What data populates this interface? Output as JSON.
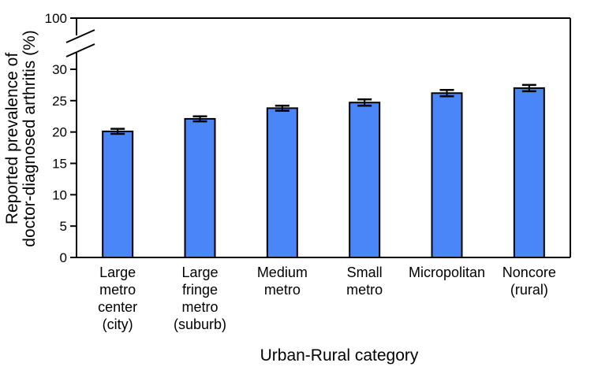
{
  "chart_data": {
    "type": "bar",
    "title": "",
    "xlabel": "Urban-Rural category",
    "ylabel_lines": [
      "Reported prevalence of",
      "doctor-diagnosed arthritis (%)"
    ],
    "categories": [
      {
        "lines": [
          "Large",
          "metro",
          "center",
          "(city)"
        ]
      },
      {
        "lines": [
          "Large",
          "fringe",
          "metro",
          "(suburb)"
        ]
      },
      {
        "lines": [
          "Medium",
          "metro"
        ]
      },
      {
        "lines": [
          "Small",
          "metro"
        ]
      },
      {
        "lines": [
          "Micropolitan"
        ]
      },
      {
        "lines": [
          "Noncore",
          "(rural)"
        ]
      }
    ],
    "values": [
      20.1,
      22.1,
      23.8,
      24.7,
      26.2,
      27.0
    ],
    "error_low": [
      19.7,
      21.7,
      23.4,
      24.2,
      25.7,
      26.5
    ],
    "error_high": [
      20.5,
      22.5,
      24.2,
      25.2,
      26.7,
      27.5
    ],
    "ylim": [
      0,
      30
    ],
    "y_ticks": [
      "0",
      "5",
      "10",
      "15",
      "20",
      "25",
      "30"
    ],
    "y_axis_break": true,
    "y_break_top_tick": "100",
    "bar_color": "#4a86f7",
    "bar_edge_color": "#000000",
    "grid": false,
    "legend": "none"
  }
}
